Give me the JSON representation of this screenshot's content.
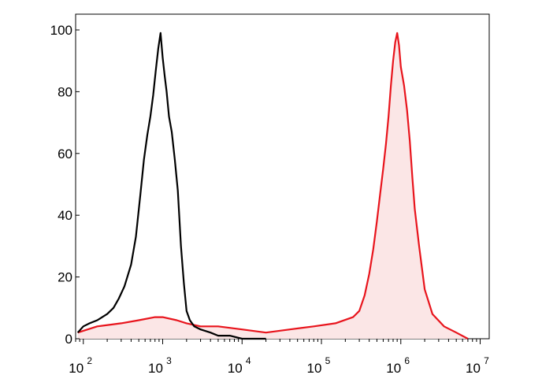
{
  "chart_data": {
    "type": "area",
    "title": "",
    "xlabel": "",
    "ylabel": "",
    "x_scale": "log",
    "xlim": [
      80,
      13000000
    ],
    "ylim": [
      0,
      100
    ],
    "grid": false,
    "legend": "none",
    "x_tick_labels": [
      {
        "base": "10",
        "exp": "2",
        "value": 100
      },
      {
        "base": "10",
        "exp": "3",
        "value": 1000
      },
      {
        "base": "10",
        "exp": "4",
        "value": 10000
      },
      {
        "base": "10",
        "exp": "5",
        "value": 100000
      },
      {
        "base": "10",
        "exp": "6",
        "value": 1000000
      },
      {
        "base": "10",
        "exp": "7",
        "value": 10000000
      }
    ],
    "y_ticks": [
      0,
      20,
      40,
      60,
      80,
      100
    ],
    "y_tick_labels": [
      "0",
      "20",
      "40",
      "60",
      "80",
      "100"
    ],
    "series": [
      {
        "color": "#000000",
        "filled": false,
        "x": [
          85,
          100,
          120,
          150,
          200,
          240,
          280,
          330,
          400,
          460,
          520,
          580,
          640,
          700,
          760,
          820,
          880,
          940,
          1000,
          1060,
          1120,
          1200,
          1300,
          1420,
          1550,
          1700,
          1850,
          2000,
          2200,
          2500,
          3000,
          4000,
          5000,
          7000,
          10000,
          20000
        ],
        "y": [
          2,
          4,
          5,
          6,
          8,
          10,
          13,
          17,
          24,
          33,
          46,
          58,
          66,
          72,
          79,
          87,
          94,
          99,
          91,
          85,
          80,
          72,
          67,
          58,
          48,
          30,
          18,
          9,
          6,
          4,
          3,
          2,
          1,
          1,
          0,
          0
        ]
      },
      {
        "color": "#e8141c",
        "fill": "#fbe6e6",
        "filled": true,
        "x": [
          85,
          150,
          300,
          500,
          800,
          1000,
          1500,
          2000,
          3000,
          5000,
          10000,
          20000,
          40000,
          80000,
          150000,
          250000,
          300000,
          350000,
          400000,
          450000,
          500000,
          550000,
          600000,
          650000,
          700000,
          750000,
          800000,
          850000,
          900000,
          950000,
          1000000,
          1100000,
          1200000,
          1300000,
          1400000,
          1500000,
          1700000,
          2000000,
          2500000,
          3500000,
          5000000,
          7000000
        ],
        "y": [
          2,
          4,
          5,
          6,
          7,
          7,
          6,
          5,
          4,
          4,
          3,
          2,
          3,
          4,
          5,
          7,
          9,
          14,
          21,
          29,
          38,
          47,
          55,
          63,
          72,
          82,
          90,
          96,
          99,
          95,
          88,
          82,
          74,
          64,
          52,
          42,
          30,
          16,
          8,
          4,
          2,
          0
        ]
      }
    ]
  }
}
